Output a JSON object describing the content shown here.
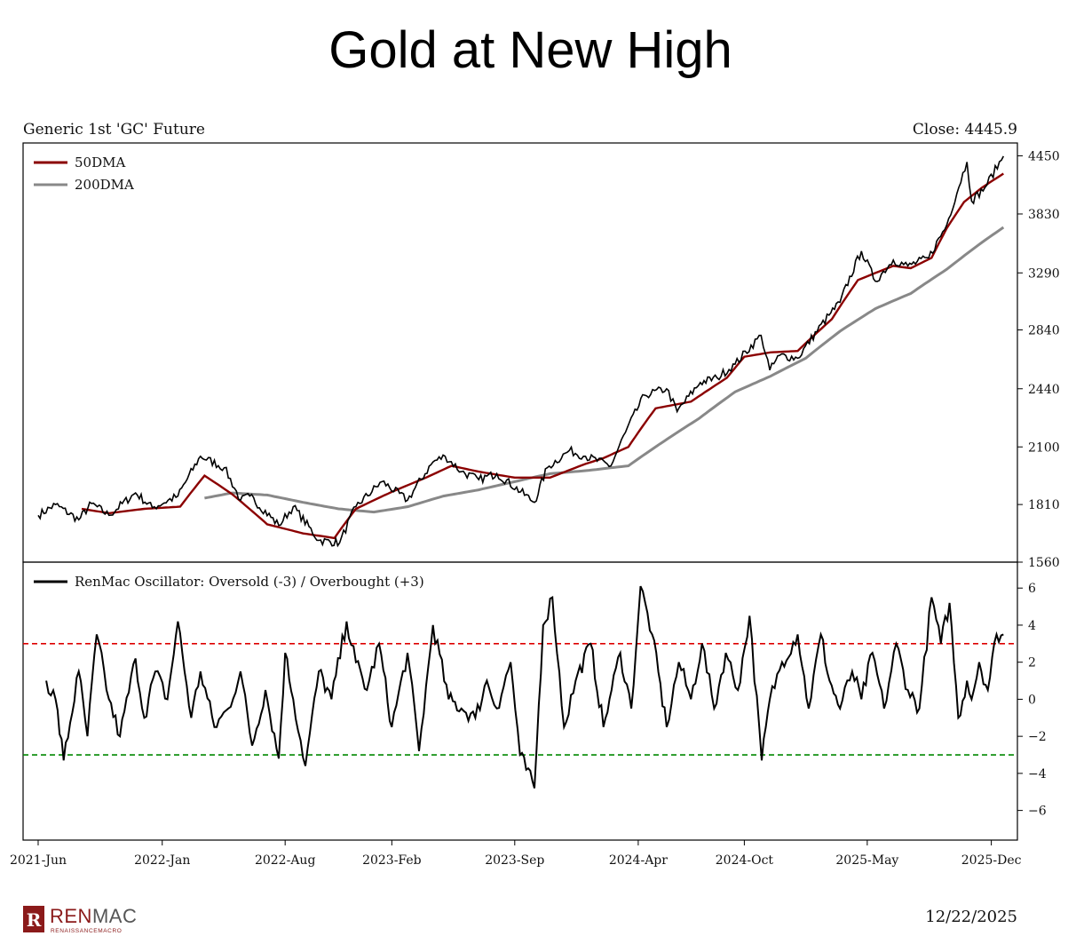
{
  "page": {
    "title": "Gold at New High",
    "date": "12/22/2025",
    "brand": {
      "name_part1": "REN",
      "name_part2": "MAC",
      "tagline": "RENAISSANCEMACRO",
      "mark": "R"
    }
  },
  "chart_data": [
    {
      "type": "line",
      "title": "Generic 1st 'GC' Future",
      "annotation": "Close: 4445.9",
      "x_ticks": [
        "2021-Jun",
        "2022-Jan",
        "2022-Aug",
        "2023-Feb",
        "2023-Sep",
        "2024-Apr",
        "2024-Oct",
        "2025-May",
        "2025-Dec"
      ],
      "x_tick_dates": [
        "2021-06-01",
        "2022-01-01",
        "2022-08-01",
        "2023-02-01",
        "2023-09-01",
        "2024-04-01",
        "2024-10-01",
        "2025-05-01",
        "2025-12-01"
      ],
      "x_range": [
        "2021-05-06",
        "2026-01-15"
      ],
      "y_scale": "log",
      "y_ticks": [
        1560,
        1810,
        2100,
        2440,
        2840,
        3290,
        3830,
        4450
      ],
      "ylim": [
        1560,
        4600
      ],
      "grid": false,
      "legend_position": "top-left",
      "colors": {
        "price": "#000000",
        "dma50": "#8b0000",
        "dma200": "#888888"
      },
      "series": [
        {
          "name": "",
          "key": "price",
          "x": [
            "2021-06-01",
            "2021-07-01",
            "2021-08-10",
            "2021-09-01",
            "2021-10-01",
            "2021-11-16",
            "2021-12-15",
            "2022-01-28",
            "2022-03-08",
            "2022-04-18",
            "2022-05-16",
            "2022-06-01",
            "2022-07-21",
            "2022-08-15",
            "2022-09-28",
            "2022-11-03",
            "2022-12-01",
            "2023-01-15",
            "2023-02-28",
            "2023-04-13",
            "2023-05-04",
            "2023-06-01",
            "2023-07-01",
            "2023-08-01",
            "2023-10-05",
            "2023-10-27",
            "2023-12-04",
            "2024-01-01",
            "2024-02-14",
            "2024-03-10",
            "2024-04-12",
            "2024-05-20",
            "2024-06-07",
            "2024-07-17",
            "2024-08-15",
            "2024-09-15",
            "2024-10-30",
            "2024-11-14",
            "2024-12-01",
            "2025-01-01",
            "2025-02-24",
            "2025-03-15",
            "2025-04-21",
            "2025-05-15",
            "2025-06-15",
            "2025-07-10",
            "2025-08-15",
            "2025-09-15",
            "2025-10-20",
            "2025-10-28",
            "2025-11-20",
            "2025-12-22"
          ],
          "y": [
            1760,
            1810,
            1740,
            1815,
            1760,
            1865,
            1795,
            1850,
            2050,
            1990,
            1830,
            1850,
            1715,
            1800,
            1650,
            1640,
            1800,
            1920,
            1830,
            2020,
            2050,
            1970,
            1930,
            1960,
            1820,
            1990,
            2080,
            2050,
            2000,
            2180,
            2400,
            2440,
            2300,
            2480,
            2510,
            2600,
            2800,
            2560,
            2660,
            2640,
            2950,
            3050,
            3480,
            3220,
            3400,
            3350,
            3420,
            3720,
            4380,
            3960,
            4100,
            4445.9
          ]
        },
        {
          "name": "50DMA",
          "key": "dma50",
          "x": [
            "2021-08-15",
            "2021-10-01",
            "2021-12-01",
            "2022-02-01",
            "2022-03-15",
            "2022-05-01",
            "2022-07-01",
            "2022-09-01",
            "2022-10-25",
            "2022-12-01",
            "2023-02-01",
            "2023-04-01",
            "2023-05-15",
            "2023-07-01",
            "2023-09-01",
            "2023-11-01",
            "2024-01-01",
            "2024-02-01",
            "2024-03-15",
            "2024-05-01",
            "2024-07-01",
            "2024-09-01",
            "2024-10-01",
            "2024-11-15",
            "2025-01-01",
            "2025-03-01",
            "2025-04-15",
            "2025-06-15",
            "2025-07-15",
            "2025-08-20",
            "2025-09-15",
            "2025-10-15",
            "2025-11-15",
            "2025-12-22"
          ],
          "y": [
            1790,
            1770,
            1790,
            1800,
            1950,
            1860,
            1720,
            1680,
            1660,
            1790,
            1870,
            1940,
            2000,
            1970,
            1940,
            1940,
            2010,
            2040,
            2100,
            2320,
            2360,
            2510,
            2650,
            2680,
            2690,
            2920,
            3230,
            3350,
            3330,
            3420,
            3690,
            3950,
            4100,
            4250
          ]
        },
        {
          "name": "200DMA",
          "key": "dma200",
          "x": [
            "2022-03-15",
            "2022-05-01",
            "2022-07-01",
            "2022-09-01",
            "2022-11-01",
            "2023-01-01",
            "2023-03-01",
            "2023-05-01",
            "2023-07-01",
            "2023-09-01",
            "2023-11-01",
            "2024-01-01",
            "2024-03-15",
            "2024-05-15",
            "2024-07-15",
            "2024-09-15",
            "2024-11-15",
            "2025-01-15",
            "2025-03-15",
            "2025-05-15",
            "2025-07-15",
            "2025-09-15",
            "2025-11-15",
            "2025-12-22"
          ],
          "y": [
            1840,
            1865,
            1855,
            1820,
            1790,
            1775,
            1800,
            1850,
            1880,
            1920,
            1960,
            1975,
            2000,
            2130,
            2260,
            2420,
            2520,
            2640,
            2830,
            3000,
            3120,
            3320,
            3560,
            3700
          ]
        }
      ]
    },
    {
      "type": "line",
      "title": "",
      "x_range": [
        "2021-05-06",
        "2026-01-15"
      ],
      "y_ticks": [
        6,
        4,
        2,
        0,
        -2,
        -4,
        -6
      ],
      "ylim": [
        -7.6,
        7.4
      ],
      "grid": false,
      "legend_position": "top-left",
      "reference_lines": [
        {
          "y": 3,
          "color": "#dd0000",
          "style": "dashed"
        },
        {
          "y": -3,
          "color": "#008800",
          "style": "dashed"
        }
      ],
      "series": [
        {
          "name": "RenMac Oscillator: Oversold (-3) / Overbought (+3)",
          "key": "oscillator",
          "x": [
            "2021-06-15",
            "2021-07-01",
            "2021-07-15",
            "2021-08-10",
            "2021-08-25",
            "2021-09-10",
            "2021-10-01",
            "2021-10-20",
            "2021-11-16",
            "2021-12-01",
            "2021-12-20",
            "2022-01-10",
            "2022-01-28",
            "2022-02-20",
            "2022-03-08",
            "2022-04-01",
            "2022-04-25",
            "2022-05-16",
            "2022-06-05",
            "2022-06-28",
            "2022-07-21",
            "2022-08-01",
            "2022-08-15",
            "2022-09-05",
            "2022-09-28",
            "2022-10-20",
            "2022-11-15",
            "2022-12-01",
            "2022-12-20",
            "2023-01-10",
            "2023-02-01",
            "2023-02-28",
            "2023-03-20",
            "2023-04-13",
            "2023-05-10",
            "2023-06-01",
            "2023-06-25",
            "2023-07-15",
            "2023-08-01",
            "2023-08-25",
            "2023-09-10",
            "2023-10-05",
            "2023-10-20",
            "2023-11-05",
            "2023-11-25",
            "2023-12-15",
            "2024-01-10",
            "2024-02-01",
            "2024-02-15",
            "2024-03-01",
            "2024-03-20",
            "2024-04-05",
            "2024-04-25",
            "2024-05-20",
            "2024-06-10",
            "2024-07-01",
            "2024-07-20",
            "2024-08-10",
            "2024-08-30",
            "2024-09-20",
            "2024-10-10",
            "2024-10-31",
            "2024-11-14",
            "2024-12-05",
            "2025-01-01",
            "2025-01-20",
            "2025-02-10",
            "2025-02-25",
            "2025-03-15",
            "2025-04-05",
            "2025-04-21",
            "2025-05-10",
            "2025-05-30",
            "2025-06-20",
            "2025-07-10",
            "2025-07-30",
            "2025-08-20",
            "2025-09-05",
            "2025-09-20",
            "2025-10-05",
            "2025-10-20",
            "2025-10-28",
            "2025-11-10",
            "2025-11-25",
            "2025-12-10",
            "2025-12-22"
          ],
          "y": [
            1,
            0,
            -3.3,
            1.5,
            -2,
            3.5,
            0,
            -2,
            2.2,
            -1,
            1.5,
            0,
            4.2,
            -1,
            1.5,
            -1.5,
            -0.5,
            1.5,
            -2.5,
            0.5,
            -3.2,
            2.5,
            0,
            -3.6,
            1.5,
            0,
            4.2,
            2,
            0.5,
            3,
            -1.5,
            2.5,
            -2.8,
            4,
            0,
            -0.5,
            -1,
            1,
            -0.5,
            2,
            -3,
            -4.8,
            4,
            5.5,
            -1.5,
            1,
            3,
            -1.5,
            0.5,
            2.5,
            -0.5,
            6.1,
            3.5,
            -1.5,
            2,
            0,
            3,
            -0.5,
            2.5,
            0.5,
            4.5,
            -3.3,
            0,
            2,
            3.5,
            -0.5,
            3.5,
            1,
            -0.5,
            1.5,
            0,
            2.5,
            -0.5,
            3,
            0.5,
            -0.5,
            5.5,
            3,
            5.2,
            -1,
            1,
            0,
            2,
            0.5,
            3.5,
            3.5
          ]
        }
      ]
    }
  ]
}
